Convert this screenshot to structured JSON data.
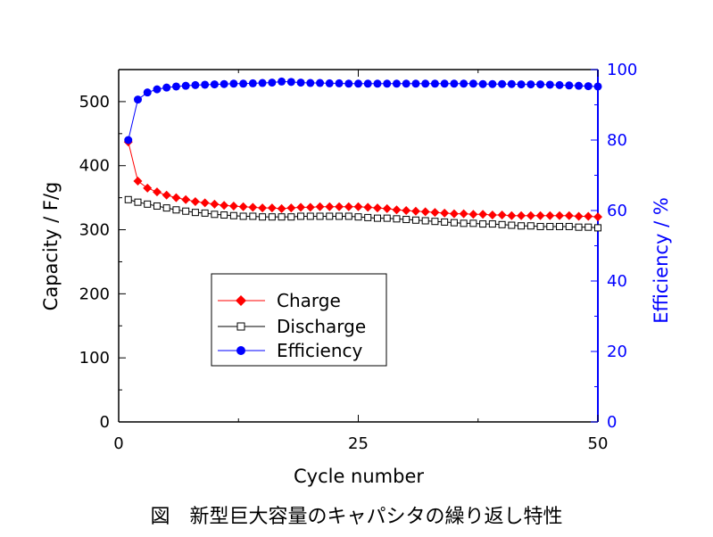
{
  "caption": "図　新型巨大容量のキャパシタの繰り返し特性",
  "chart_data": {
    "type": "line",
    "xlabel": "Cycle number",
    "ylabel": "Capacity / F/g",
    "y2label": "Efficiency / %",
    "xlim": [
      0,
      50
    ],
    "ylim": [
      0,
      550
    ],
    "y2lim": [
      0,
      100
    ],
    "xticks": [
      "0",
      "25",
      "50"
    ],
    "yticks": [
      "0",
      "100",
      "200",
      "300",
      "400",
      "500"
    ],
    "y2ticks": [
      "0",
      "20",
      "40",
      "60",
      "80",
      "100"
    ],
    "legend_position": "lower-left",
    "series": [
      {
        "name": "Charge",
        "axis": "left",
        "color": "#ff0000",
        "marker": "diamond",
        "x": [
          1,
          2,
          3,
          4,
          5,
          6,
          7,
          8,
          9,
          10,
          11,
          12,
          13,
          14,
          15,
          16,
          17,
          18,
          19,
          20,
          21,
          22,
          23,
          24,
          25,
          26,
          27,
          28,
          29,
          30,
          31,
          32,
          33,
          34,
          35,
          36,
          37,
          38,
          39,
          40,
          41,
          42,
          43,
          44,
          45,
          46,
          47,
          48,
          49,
          50
        ],
        "values": [
          437,
          376,
          365,
          359,
          354,
          350,
          347,
          344,
          342,
          340,
          338,
          337,
          336,
          335,
          334,
          334,
          333,
          334,
          335,
          335,
          336,
          336,
          336,
          336,
          336,
          335,
          334,
          333,
          331,
          330,
          329,
          328,
          327,
          326,
          325,
          325,
          324,
          324,
          323,
          323,
          322,
          322,
          322,
          322,
          322,
          322,
          322,
          321,
          321,
          320
        ]
      },
      {
        "name": "Discharge",
        "axis": "left",
        "color": "#000000",
        "marker": "square-open",
        "x": [
          1,
          2,
          3,
          4,
          5,
          6,
          7,
          8,
          9,
          10,
          11,
          12,
          13,
          14,
          15,
          16,
          17,
          18,
          19,
          20,
          21,
          22,
          23,
          24,
          25,
          26,
          27,
          28,
          29,
          30,
          31,
          32,
          33,
          34,
          35,
          36,
          37,
          38,
          39,
          40,
          41,
          42,
          43,
          44,
          45,
          46,
          47,
          48,
          49,
          50
        ],
        "values": [
          347,
          343,
          340,
          337,
          334,
          331,
          329,
          327,
          326,
          324,
          323,
          322,
          321,
          321,
          320,
          320,
          320,
          320,
          321,
          321,
          321,
          321,
          321,
          321,
          320,
          319,
          318,
          318,
          317,
          316,
          315,
          314,
          313,
          312,
          311,
          310,
          310,
          309,
          309,
          308,
          307,
          306,
          306,
          305,
          305,
          305,
          305,
          304,
          304,
          303
        ]
      },
      {
        "name": "Efficiency",
        "axis": "right",
        "color": "#0000ff",
        "marker": "circle",
        "x": [
          1,
          2,
          3,
          4,
          5,
          6,
          7,
          8,
          9,
          10,
          11,
          12,
          13,
          14,
          15,
          16,
          17,
          18,
          19,
          20,
          21,
          22,
          23,
          24,
          25,
          26,
          27,
          28,
          29,
          30,
          31,
          32,
          33,
          34,
          35,
          36,
          37,
          38,
          39,
          40,
          41,
          42,
          43,
          44,
          45,
          46,
          47,
          48,
          49,
          50
        ],
        "values": [
          80,
          91.5,
          93.5,
          94.4,
          94.9,
          95.2,
          95.4,
          95.6,
          95.7,
          95.8,
          95.9,
          96,
          96,
          96.1,
          96.2,
          96.3,
          96.6,
          96.5,
          96.3,
          96.2,
          96.2,
          96.1,
          96.1,
          96,
          96,
          96,
          96,
          96,
          96,
          96,
          96,
          96,
          96,
          96,
          96,
          96,
          96,
          95.9,
          95.9,
          95.9,
          95.9,
          95.8,
          95.8,
          95.8,
          95.7,
          95.6,
          95.5,
          95.4,
          95.3,
          95.2
        ]
      }
    ]
  }
}
